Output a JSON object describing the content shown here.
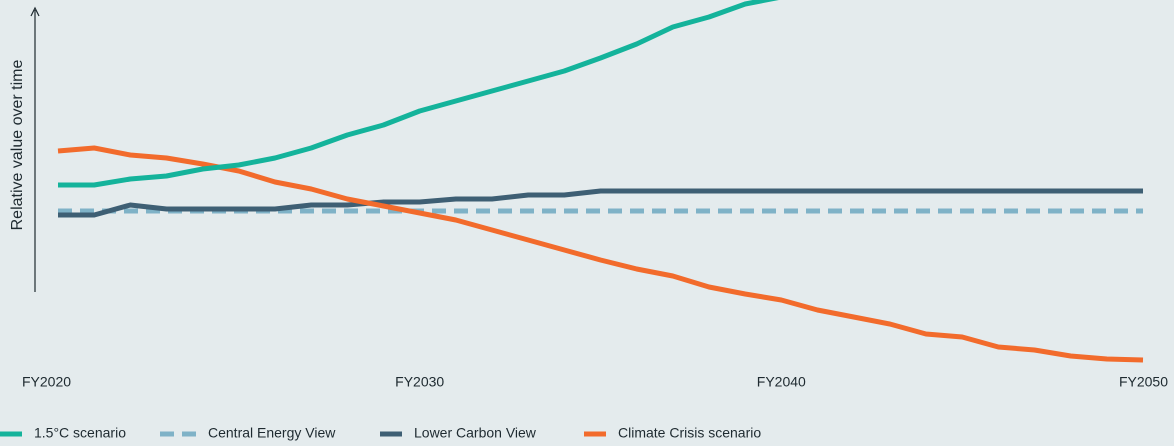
{
  "chart_data": {
    "type": "line",
    "y_label": "Relative value over time",
    "categories": [
      "FY2020",
      null,
      null,
      null,
      null,
      null,
      null,
      null,
      null,
      null,
      "FY2030",
      null,
      null,
      null,
      null,
      null,
      null,
      null,
      null,
      null,
      "FY2040",
      null,
      null,
      null,
      null,
      null,
      null,
      null,
      null,
      null,
      "FY2050"
    ],
    "ylim": [
      0,
      372
    ],
    "series": [
      {
        "name": "1.5°C scenario",
        "color": "#14b39b",
        "dash": false,
        "values": [
          187,
          187,
          193,
          196,
          203,
          207,
          214,
          224,
          237,
          247,
          261,
          271,
          281,
          291,
          301,
          314,
          328,
          345,
          355,
          368,
          375,
          null,
          null,
          null,
          null,
          null,
          null,
          null,
          null,
          null,
          null
        ]
      },
      {
        "name": "Central Energy View",
        "color": "#7fb2c7",
        "dash": true,
        "values": [
          161,
          161,
          161,
          161,
          161,
          161,
          161,
          161,
          161,
          161,
          161,
          161,
          161,
          161,
          161,
          161,
          161,
          161,
          161,
          161,
          161,
          161,
          161,
          161,
          161,
          161,
          161,
          161,
          161,
          161,
          161
        ]
      },
      {
        "name": "Lower Carbon View",
        "color": "#3e5f74",
        "dash": false,
        "values": [
          157,
          157,
          167,
          163,
          163,
          163,
          163,
          167,
          167,
          170,
          170,
          173,
          173,
          177,
          177,
          181,
          181,
          181,
          181,
          181,
          181,
          181,
          181,
          181,
          181,
          181,
          181,
          181,
          181,
          181,
          181
        ]
      },
      {
        "name": "Climate Crisis scenario",
        "color": "#f26b2c",
        "dash": false,
        "values": [
          221,
          224,
          217,
          214,
          208,
          201,
          190,
          183,
          173,
          166,
          159,
          152,
          142,
          132,
          122,
          112,
          103,
          96,
          85,
          78,
          72,
          62,
          55,
          48,
          38,
          35,
          25,
          22,
          16,
          13,
          12
        ]
      }
    ]
  }
}
